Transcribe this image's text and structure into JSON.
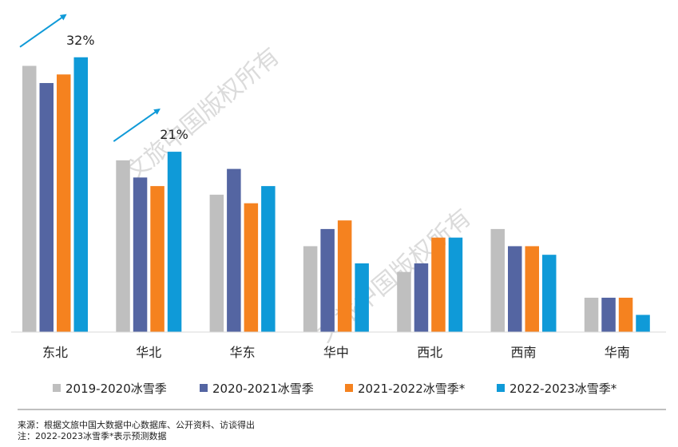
{
  "chart_data": {
    "type": "bar",
    "categories": [
      "东北",
      "华北",
      "华东",
      "华中",
      "西北",
      "西南",
      "华南"
    ],
    "series": [
      {
        "name": "2019-2020冰雪季",
        "color": "#bfbfbf",
        "values": [
          31,
          20,
          16,
          10,
          7,
          12,
          4
        ]
      },
      {
        "name": "2020-2021冰雪季",
        "color": "#5465a2",
        "values": [
          29,
          18,
          19,
          12,
          8,
          10,
          4
        ]
      },
      {
        "name": "2021-2022冰雪季*",
        "color": "#f5821f",
        "values": [
          30,
          17,
          15,
          13,
          11,
          10,
          4
        ]
      },
      {
        "name": "2022-2023冰雪季*",
        "color": "#0f9ad8",
        "values": [
          32,
          21,
          17,
          8,
          11,
          9,
          2
        ]
      }
    ],
    "ylim": [
      0,
      33
    ],
    "annotations": [
      {
        "category": "东北",
        "text": "32%"
      },
      {
        "category": "华北",
        "text": "21%"
      }
    ],
    "watermark": "文旅中国版权所有",
    "arrow_color": "#0f9ad8"
  },
  "footer": {
    "source": "来源：根据文旅中国大数据中心数据库、公开资料、访谈得出",
    "note": "注：2022-2023冰雪季*表示预测数据"
  }
}
